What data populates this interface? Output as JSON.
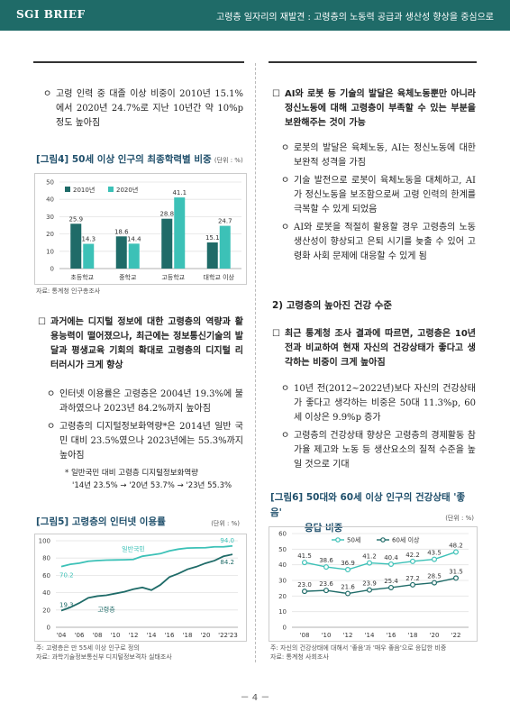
{
  "header": {
    "brand": "SGI BRIEF",
    "title": "고령층 일자리의 재발견 : 고령층의 노동력 공급과 생산성 향상을 중심으로"
  },
  "left": {
    "bullet1": "고령 인력 중 대졸 이상 비중이 2010년 15.1%에서 2020년 24.7%로 지난 10년간 약 10%p 정도 높아짐",
    "fig4": {
      "title": "[그림4] 50세 이상 인구의 최종학력별 비중",
      "unit": "(단위 : %)",
      "source": "자료: 통계청 인구총조사"
    },
    "sq1": "과거에는 디지털 정보에 대한 고령층의 역량과 활용능력이 떨어졌으나, 최근에는 정보통신기술의 발달과 평생교육 기회의 확대로 고령층의 디지털 리터러시가 크게 향상",
    "bullet2": "인터넷 이용률은 고령층은 2004년 19.3%에 불과하였으나 2023년 84.2%까지 높아짐",
    "bullet3": "고령층의 디지털정보화역량*은 2014년 일반 국민 대비 23.5%였으나 2023년에는 55.3%까지 높아짐",
    "footnote1": "* 일반국민 대비 고령층 디지털정보화역량",
    "footnote2": "'14년 23.5% → '20년 53.7% → '23년 55.3%",
    "fig5": {
      "title": "[그림5] 고령층의 인터넷 이용률",
      "unit": "(단위 : %)",
      "note1": "주: 고령층은 만 55세 이상 인구로 정의",
      "note2": "자료: 과학기술정보통신부 디지털정보격차 실태조사"
    }
  },
  "right": {
    "sq1": "AI와 로봇 등 기술의 발달은 육체노동뿐만 아니라 정신노동에 대해 고령층이 부족할 수 있는 부분을 보완해주는 것이 가능",
    "bullet1": "로봇의 발달은 육체노동, AI는 정신노동에 대한 보완적 성격을 가짐",
    "bullet2": "기술 발전으로 로봇이 육체노동을 대체하고, AI가 정신노동을 보조함으로써 고령 인력의 한계를 극복할 수 있게 되었음",
    "bullet3": "AI와 로봇을 적절히 활용할 경우 고령층의 노동생산성이 향상되고 은퇴 시기를 늦출 수 있어 고령화 사회 문제에 대응할 수 있게 됨",
    "section": "2) 고령층의 높아진 건강 수준",
    "sq2": "최근 통계청 조사 결과에 따르면, 고령층은 10년 전과 비교하여 현재 자신의 건강상태가 좋다고 생각하는 비중이 크게 높아짐",
    "bullet4": "10년 전(2012~2022년)보다 자신의 건강상태가 좋다고 생각하는 비중은 50대 11.3%p, 60세 이상은 9.9%p 증가",
    "bullet5": "고령층의 건강상태 향상은 고령층의 경제활동 참가율 제고와 노동 등 생산요소의 질적 수준을 높일 것으로 기대",
    "fig6": {
      "title1": "[그림6] 50대와 60세 이상 인구의 건강상태 '좋음'",
      "title2": "응답 비중",
      "unit": "(단위 : %)",
      "note1": "주: 자신의 건강상태에 대해서 '좋음'과 '매우 좋음'으로 응답한 비중",
      "note2": "자료: 통계청 사회조사"
    }
  },
  "marks": {
    "circle": "ㅇ",
    "square": "☐"
  },
  "page_number": "－ 4 －",
  "chart_data": [
    {
      "type": "bar",
      "categories": [
        "초등학교",
        "중학교",
        "고등학교",
        "대학교 이상"
      ],
      "series": [
        {
          "name": "2010년",
          "values": [
            25.9,
            18.6,
            28.8,
            15.1
          ],
          "color": "#1f6b68"
        },
        {
          "name": "2020년",
          "values": [
            14.3,
            14.4,
            41.1,
            24.7
          ],
          "color": "#3cc1b7"
        }
      ],
      "ylim": [
        0,
        50
      ],
      "yticks": [
        0,
        10,
        20,
        30,
        40,
        50
      ],
      "legend": "top-left",
      "grid": true
    },
    {
      "type": "line",
      "x_ticks": [
        "'04",
        "'06",
        "'08",
        "'10",
        "'12",
        "'14",
        "'16",
        "'18",
        "'20",
        "'22'23"
      ],
      "years": [
        2004,
        2005,
        2006,
        2007,
        2008,
        2009,
        2010,
        2011,
        2012,
        2013,
        2014,
        2015,
        2016,
        2017,
        2018,
        2019,
        2020,
        2021,
        2022,
        2023
      ],
      "series": [
        {
          "name": "일반국민",
          "color": "#3cc1b7",
          "values": [
            70.2,
            72.8,
            74.1,
            76.3,
            77.1,
            77.6,
            77.8,
            78.0,
            78.4,
            82.1,
            83.6,
            85.1,
            88.3,
            90.3,
            91.5,
            91.8,
            91.9,
            93.0,
            93.0,
            94.0
          ],
          "start_label": "70.2",
          "end_label": "94.0"
        },
        {
          "name": "고령층",
          "color": "#1f6b68",
          "values": [
            19.3,
            23.0,
            28.0,
            34.0,
            36.0,
            37.0,
            39.0,
            41.0,
            44.0,
            46.0,
            43.0,
            49.0,
            58.0,
            62.0,
            67.0,
            70.0,
            74.0,
            77.0,
            82.0,
            84.2
          ],
          "start_label": "19.3",
          "end_label": "84.2"
        }
      ],
      "ylim": [
        0,
        100
      ],
      "yticks": [
        0,
        20,
        40,
        60,
        80,
        100
      ],
      "grid": true
    },
    {
      "type": "line",
      "x_ticks": [
        "'08",
        "'10",
        "'12",
        "'14",
        "'16",
        "'18",
        "'20",
        "'22"
      ],
      "series": [
        {
          "name": "50세",
          "color": "#3cc1b7",
          "values": [
            41.5,
            38.6,
            36.9,
            41.2,
            40.4,
            42.2,
            43.5,
            48.2
          ],
          "labels": [
            "41.5",
            "38.6",
            "36.9",
            "41.2",
            "40.4",
            "42.2",
            "43.5",
            "48.2"
          ]
        },
        {
          "name": "60세 이상",
          "color": "#1f6b68",
          "values": [
            23.0,
            23.6,
            21.6,
            23.9,
            25.4,
            27.2,
            28.5,
            31.5
          ],
          "labels": [
            "23.0",
            "23.6",
            "21.6",
            "23.9",
            "25.4",
            "27.2",
            "28.5",
            "31.5"
          ]
        }
      ],
      "ylim": [
        0,
        60
      ],
      "yticks": [
        0,
        10,
        20,
        30,
        40,
        50,
        60
      ],
      "legend": "top-center",
      "grid": true
    }
  ]
}
